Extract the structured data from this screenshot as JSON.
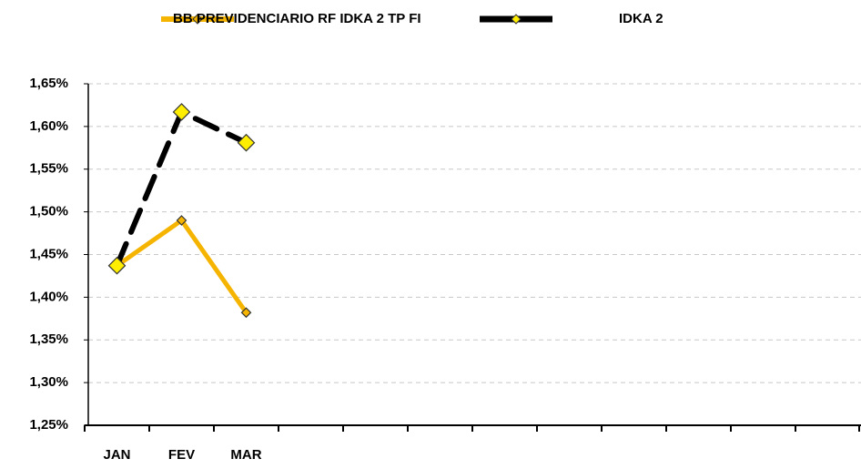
{
  "chart_data": {
    "type": "line",
    "categories": [
      "JAN",
      "FEV",
      "MAR",
      null,
      null,
      null,
      null,
      null,
      null,
      null,
      null,
      null
    ],
    "series": [
      {
        "name": "BB PREVIDENCIARIO RF IDKA 2 TP FI",
        "color": "#f5b400",
        "marker_color": "#f5b400",
        "values": [
          1.437,
          1.49,
          1.382,
          null,
          null,
          null,
          null,
          null,
          null,
          null,
          null,
          null
        ]
      },
      {
        "name": "IDKA 2",
        "color": "#000000",
        "marker_color": "#ffee00",
        "values": [
          1.437,
          1.617,
          1.581,
          null,
          null,
          null,
          null,
          null,
          null,
          null,
          null,
          null
        ]
      }
    ],
    "ylim": [
      1.25,
      1.65
    ],
    "yticks": [
      {
        "value": 1.25,
        "label": "1,25%"
      },
      {
        "value": 1.3,
        "label": "1,30%"
      },
      {
        "value": 1.35,
        "label": "1,35%"
      },
      {
        "value": 1.4,
        "label": "1,40%"
      },
      {
        "value": 1.45,
        "label": "1,45%"
      },
      {
        "value": 1.5,
        "label": "1,50%"
      },
      {
        "value": 1.55,
        "label": "1,55%"
      },
      {
        "value": 1.6,
        "label": "1,60%"
      },
      {
        "value": 1.65,
        "label": "1,65%"
      }
    ],
    "grid": true,
    "legend": "top"
  }
}
